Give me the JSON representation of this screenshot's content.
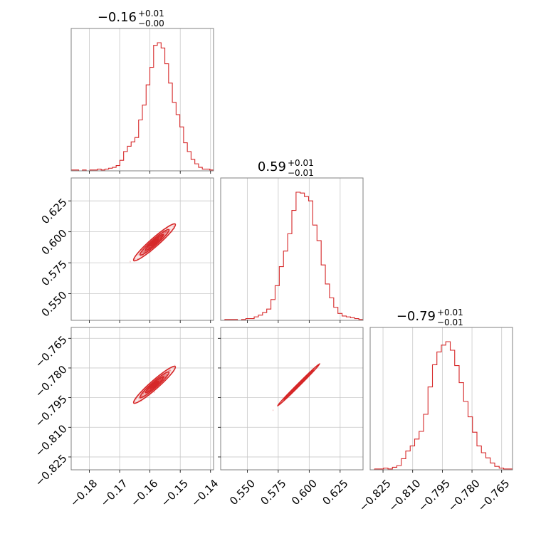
{
  "chart_data": {
    "type": "corner",
    "color": "#d62728",
    "grid": true,
    "parameters": [
      {
        "title": {
          "median": "−0.16",
          "upper": "+0.01",
          "lower": "−0.00"
        },
        "range": [
          -0.186,
          -0.139
        ],
        "ticks": [
          -0.18,
          -0.17,
          -0.16,
          -0.15,
          -0.14
        ],
        "tick_labels": [
          "−0.18",
          "−0.17",
          "−0.16",
          "−0.15",
          "−0.14"
        ],
        "hist_counts": [
          1,
          1,
          0,
          1,
          0,
          1,
          1,
          2,
          1,
          2,
          3,
          4,
          6,
          12,
          22,
          28,
          33,
          38,
          58,
          75,
          98,
          118,
          143,
          146,
          140,
          122,
          100,
          78,
          64,
          50,
          32,
          22,
          13,
          8,
          4,
          2,
          2,
          1
        ]
      },
      {
        "title": {
          "median": "0.59",
          "upper": "+0.01",
          "lower": "−0.01"
        },
        "range": [
          0.5285,
          0.6435
        ],
        "ticks": [
          0.55,
          0.575,
          0.6,
          0.625
        ],
        "tick_labels": [
          "0.550",
          "0.575",
          "0.600",
          "0.625"
        ],
        "hist_counts": [
          0,
          1,
          1,
          1,
          0,
          1,
          2,
          2,
          4,
          6,
          9,
          13,
          24,
          40,
          62,
          80,
          100,
          127,
          148,
          147,
          143,
          138,
          110,
          92,
          64,
          42,
          26,
          15,
          8,
          5,
          4,
          3,
          2,
          1
        ]
      },
      {
        "title": {
          "median": "−0.79",
          "upper": "+0.01",
          "lower": "−0.01"
        },
        "range": [
          -0.8315,
          -0.7595
        ],
        "ticks": [
          -0.825,
          -0.81,
          -0.795,
          -0.78,
          -0.765
        ],
        "tick_labels": [
          "−0.825",
          "−0.810",
          "−0.795",
          "−0.780",
          "−0.765"
        ],
        "hist_counts": [
          0,
          1,
          1,
          2,
          1,
          3,
          5,
          13,
          22,
          28,
          36,
          45,
          65,
          97,
          123,
          138,
          146,
          150,
          140,
          122,
          102,
          80,
          62,
          44,
          28,
          20,
          14,
          8,
          4,
          2,
          1,
          1
        ]
      }
    ],
    "pairs": [
      {
        "x": 0,
        "y": 1,
        "center": [
          -0.1585,
          0.5915
        ],
        "slope": 2.15
      },
      {
        "x": 0,
        "y": 2,
        "center": [
          -0.1585,
          -0.7885
        ],
        "slope": 1.35
      },
      {
        "x": 1,
        "y": 2,
        "center": [
          0.5915,
          -0.7885
        ],
        "slope": 0.625
      }
    ]
  }
}
